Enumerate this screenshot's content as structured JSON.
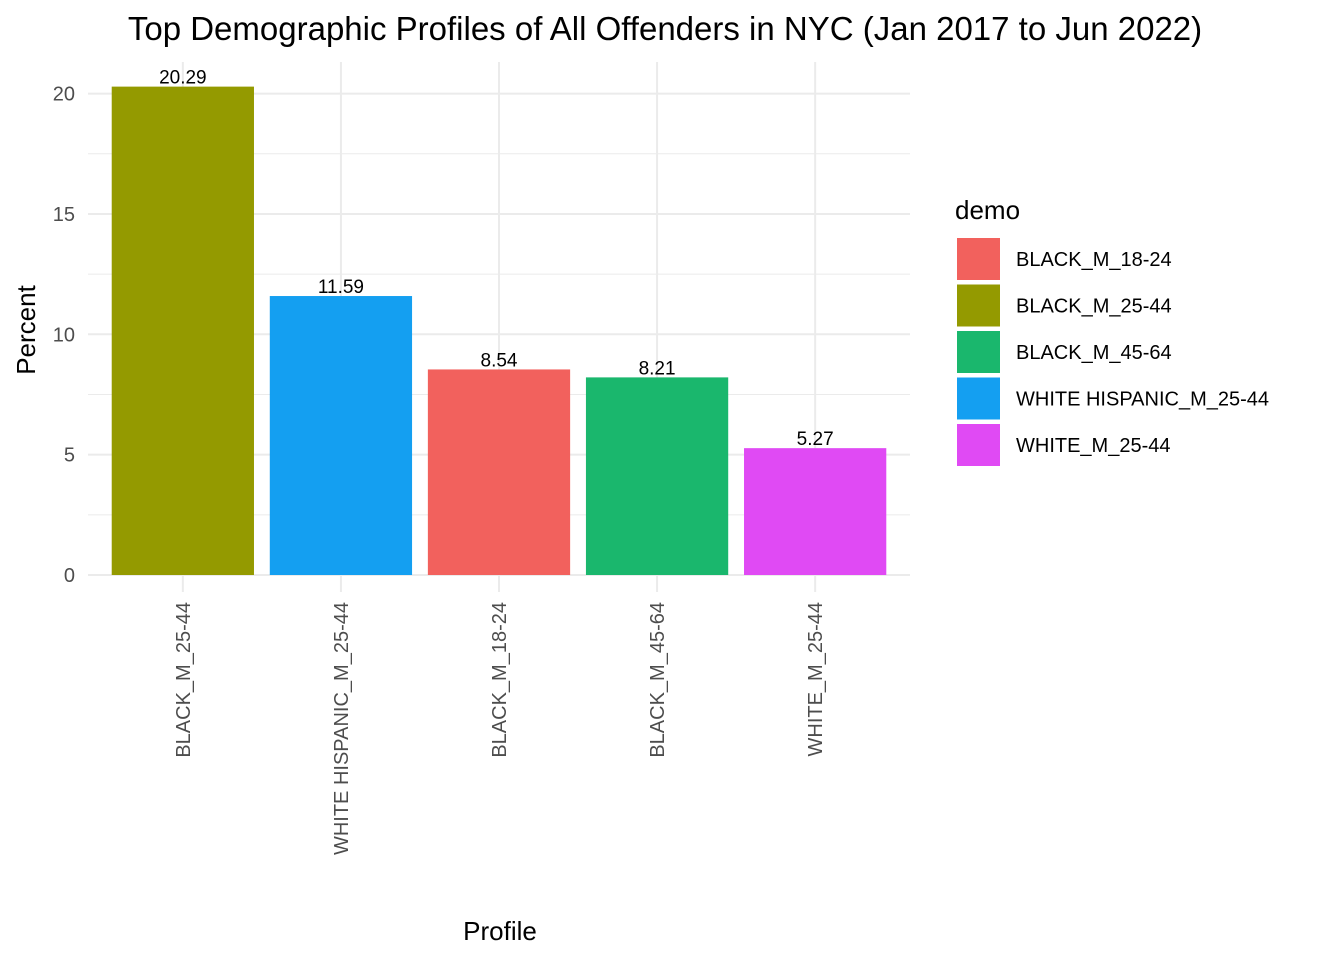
{
  "chart_data": {
    "type": "bar",
    "title": "Top Demographic Profiles of All Offenders in NYC (Jan 2017 to Jun 2022)",
    "xlabel": "Profile",
    "ylabel": "Percent",
    "categories": [
      "BLACK_M_25-44",
      "WHITE HISPANIC_M_25-44",
      "BLACK_M_18-24",
      "BLACK_M_45-64",
      "WHITE_M_25-44"
    ],
    "values": [
      20.29,
      11.59,
      8.54,
      8.21,
      5.27
    ],
    "data_labels": [
      "20.29",
      "11.59",
      "8.54",
      "8.21",
      "5.27"
    ],
    "bar_colors": [
      "#949A00",
      "#149FF1",
      "#F2615D",
      "#1AB76D",
      "#E04AF4"
    ],
    "ylim": [
      0,
      21
    ],
    "yticks": [
      0,
      5,
      10,
      15,
      20
    ],
    "grid": true,
    "x_tick_rotation": "vertical",
    "legend": {
      "title": "demo",
      "placement": "right",
      "entries": [
        {
          "label": "BLACK_M_18-24",
          "color": "#F2615D"
        },
        {
          "label": "BLACK_M_25-44",
          "color": "#949A00"
        },
        {
          "label": "BLACK_M_45-64",
          "color": "#1AB76D"
        },
        {
          "label": "WHITE HISPANIC_M_25-44",
          "color": "#149FF1"
        },
        {
          "label": "WHITE_M_25-44",
          "color": "#E04AF4"
        }
      ]
    }
  }
}
